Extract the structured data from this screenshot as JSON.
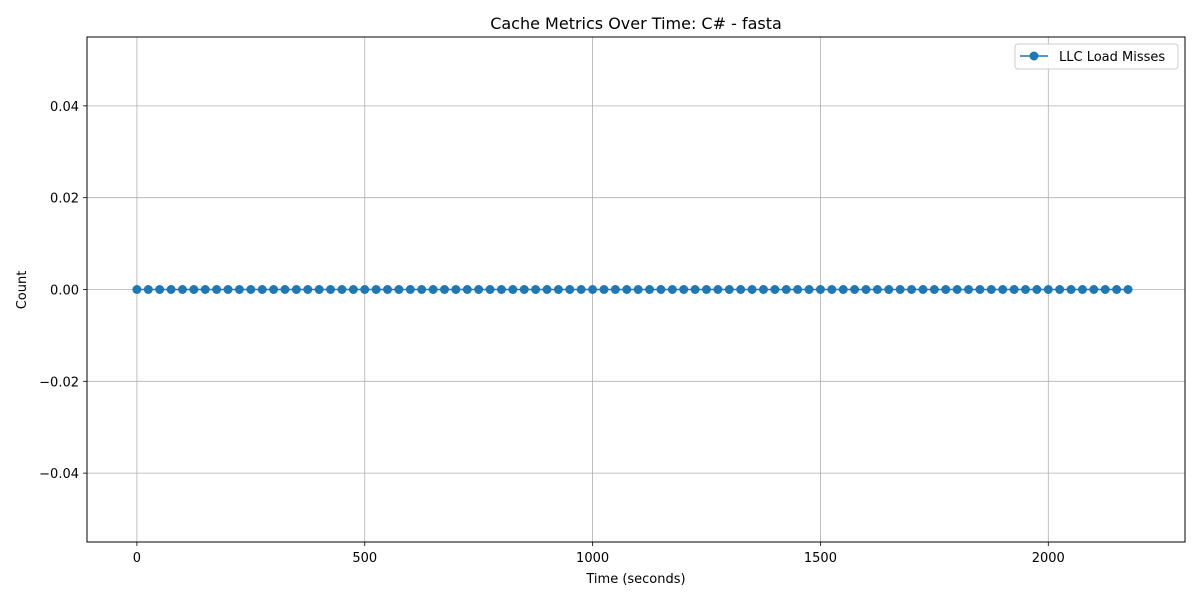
{
  "chart_data": {
    "type": "line",
    "title": "Cache Metrics Over Time: C# - fasta",
    "xlabel": "Time (seconds)",
    "ylabel": "Count",
    "xlim": [
      -109.5,
      2300
    ],
    "ylim": [
      -0.055,
      0.055
    ],
    "x_ticks": [
      0,
      500,
      1000,
      1500,
      2000
    ],
    "x_tick_labels": [
      "0",
      "500",
      "1000",
      "1500",
      "2000"
    ],
    "y_ticks": [
      -0.04,
      -0.02,
      0.0,
      0.02,
      0.04
    ],
    "y_tick_labels": [
      "−0.04",
      "−0.02",
      "0.00",
      "0.02",
      "0.04"
    ],
    "grid": true,
    "legend_position": "top-right",
    "series": [
      {
        "name": "LLC Load Misses",
        "color": "#1f77b4",
        "marker": "circle",
        "x_start": 0,
        "x_step": 25,
        "count": 88,
        "y_constant": 0
      }
    ]
  }
}
